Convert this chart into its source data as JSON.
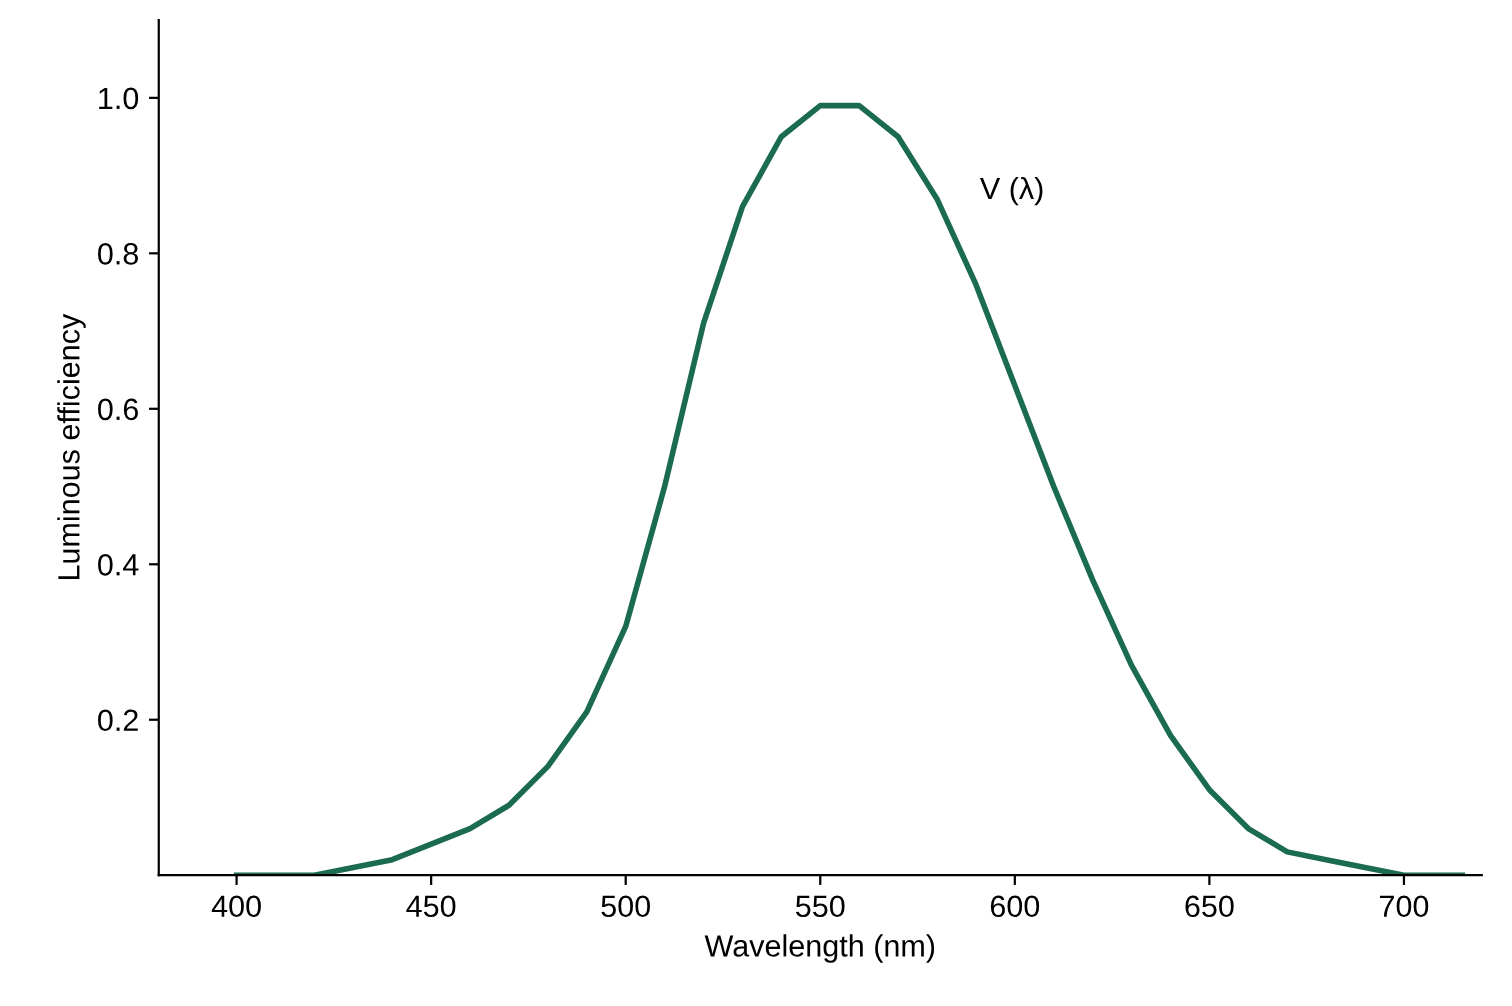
{
  "chart_data": {
    "type": "line",
    "xlabel": "Wavelength (nm)",
    "ylabel": "Luminous efficiency",
    "x": [
      400,
      410,
      420,
      430,
      440,
      450,
      460,
      470,
      480,
      490,
      500,
      510,
      520,
      530,
      540,
      550,
      555,
      560,
      570,
      580,
      590,
      600,
      610,
      620,
      630,
      640,
      650,
      660,
      670,
      680,
      690,
      700,
      715
    ],
    "series": [
      {
        "color": "#1a6b4f",
        "values": [
          0.0,
          0.0,
          0.0,
          0.01,
          0.02,
          0.04,
          0.06,
          0.09,
          0.14,
          0.21,
          0.32,
          0.5,
          0.71,
          0.86,
          0.95,
          0.99,
          0.99,
          0.99,
          0.95,
          0.87,
          0.76,
          0.63,
          0.5,
          0.38,
          0.27,
          0.18,
          0.11,
          0.06,
          0.03,
          0.02,
          0.01,
          0.0,
          0.0
        ]
      }
    ],
    "annotations": [
      "V (λ)"
    ],
    "xlim": [
      380,
      720
    ],
    "ylim": [
      0,
      1.1
    ],
    "xticks": [
      400,
      450,
      500,
      550,
      600,
      650,
      700
    ],
    "yticks": [
      0.2,
      0.4,
      0.6,
      0.8,
      {
        "value": 1.0,
        "label": "1.0"
      }
    ],
    "grid": false,
    "legend": false,
    "marker": "none",
    "line_style": "solid"
  }
}
